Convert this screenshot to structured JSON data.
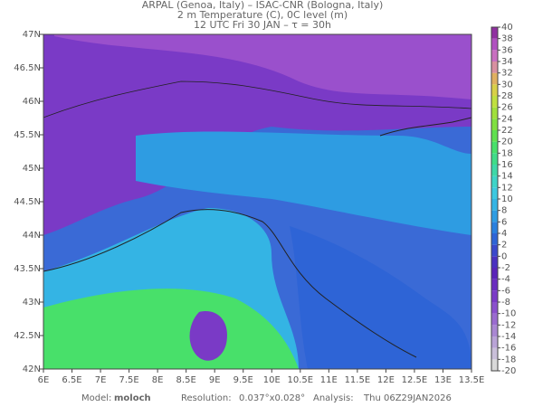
{
  "header": {
    "lines": [
      "ARPAL (Genoa, Italy)  –  ISAC-CNR (Bologna, Italy)",
      "2 m Temperature (C), 0C level (m)",
      "12 UTC Fri 30 JAN  –  τ = 30h"
    ]
  },
  "map": {
    "xlim": [
      6,
      13.5
    ],
    "ylim": [
      42,
      47
    ],
    "xticks": [
      {
        "value": 6,
        "label": "6E"
      },
      {
        "value": 6.5,
        "label": "6.5E"
      },
      {
        "value": 7,
        "label": "7E"
      },
      {
        "value": 7.5,
        "label": "7.5E"
      },
      {
        "value": 8,
        "label": "8E"
      },
      {
        "value": 8.5,
        "label": "8.5E"
      },
      {
        "value": 9,
        "label": "9E"
      },
      {
        "value": 9.5,
        "label": "9.5E"
      },
      {
        "value": 10,
        "label": "10E"
      },
      {
        "value": 10.5,
        "label": "10.5E"
      },
      {
        "value": 11,
        "label": "11E"
      },
      {
        "value": 11.5,
        "label": "11.5E"
      },
      {
        "value": 12,
        "label": "12E"
      },
      {
        "value": 12.5,
        "label": "12.5E"
      },
      {
        "value": 13,
        "label": "13E"
      },
      {
        "value": 13.5,
        "label": "13.5E"
      }
    ],
    "yticks": [
      {
        "value": 42,
        "label": "42N"
      },
      {
        "value": 42.5,
        "label": "42.5N"
      },
      {
        "value": 43,
        "label": "43N"
      },
      {
        "value": 43.5,
        "label": "43.5N"
      },
      {
        "value": 44,
        "label": "44N"
      },
      {
        "value": 44.5,
        "label": "44.5N"
      },
      {
        "value": 45,
        "label": "45N"
      },
      {
        "value": 45.5,
        "label": "45.5N"
      },
      {
        "value": 46,
        "label": "46N"
      },
      {
        "value": 46.5,
        "label": "46.5N"
      },
      {
        "value": 47,
        "label": "47N"
      }
    ]
  },
  "colorbar": {
    "lim": [
      -20,
      40
    ],
    "ticks": [
      -20,
      -18,
      -16,
      -14,
      -12,
      -10,
      -8,
      -6,
      -4,
      -2,
      0,
      2,
      4,
      6,
      8,
      10,
      12,
      14,
      16,
      18,
      20,
      22,
      24,
      26,
      28,
      30,
      32,
      34,
      36,
      38,
      40
    ],
    "colors": [
      "#d9d9d9",
      "#c9bfd9",
      "#b9a3d6",
      "#a987d2",
      "#9a6bcf",
      "#8a50cc",
      "#7a3ac6",
      "#6a2dbf",
      "#5a24b8",
      "#4a30c0",
      "#3a48cc",
      "#2e64d6",
      "#2a80de",
      "#2e9ce2",
      "#34b4e4",
      "#3cc8e0",
      "#3ed4c8",
      "#3ed8a8",
      "#40dc88",
      "#48e06a",
      "#60e050",
      "#80e040",
      "#a0e03c",
      "#c0e040",
      "#d8d048",
      "#e0b060",
      "#d890a0",
      "#c870c0",
      "#b050c0",
      "#9030a0"
    ]
  },
  "footer": {
    "model_label": "Model:",
    "model": "moloch",
    "resolution_label": "Resolution:",
    "resolution": "0.037°x0.028°",
    "analysis_label": "Analysis:",
    "analysis": "Thu 06Z29JAN2026"
  }
}
